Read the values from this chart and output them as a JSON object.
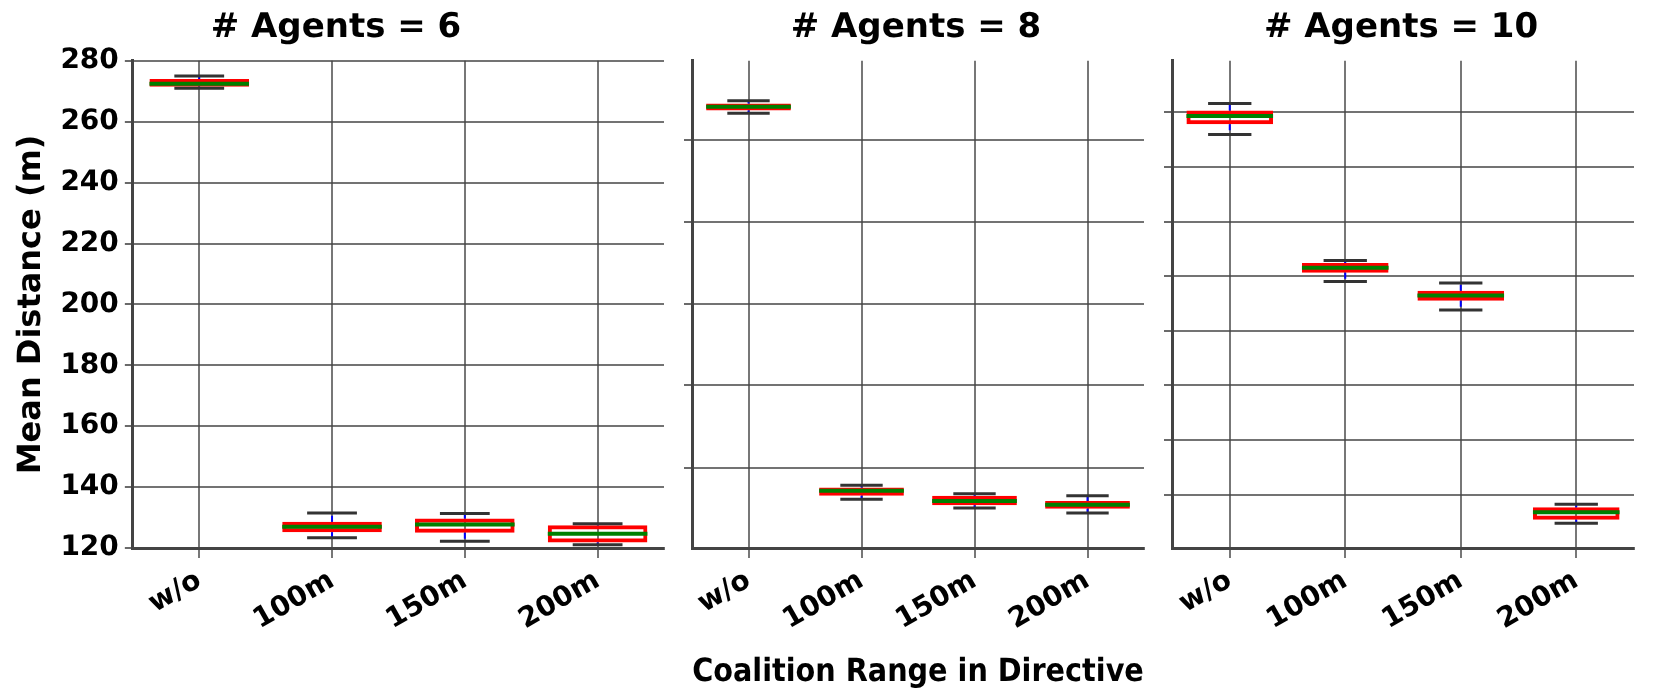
{
  "chart_data": [
    {
      "type": "box",
      "title": "# Agents = 6",
      "ylabel": "Mean Distance (m)",
      "categories": [
        "w/o",
        "100m",
        "150m",
        "200m"
      ],
      "ylim": [
        120,
        280
      ],
      "yticks": [
        120,
        140,
        160,
        180,
        200,
        220,
        240,
        260,
        280
      ],
      "grid": true,
      "series": [
        {
          "color": "#ff0000",
          "boxes": [
            {
              "low": 271,
              "q1": 271.5,
              "median": 272.5,
              "q3": 274,
              "high": 275
            },
            {
              "low": 123.4,
              "q1": 125.2,
              "median": 127,
              "q3": 128.6,
              "high": 131.5
            },
            {
              "low": 122.2,
              "q1": 125,
              "median": 127.7,
              "q3": 129.7,
              "high": 131.3
            },
            {
              "low": 121.1,
              "q1": 121.8,
              "median": 124.7,
              "q3": 127.5,
              "high": 128
            }
          ]
        }
      ]
    },
    {
      "type": "box",
      "title": "# Agents = 8",
      "xlabel": "Coalition Range in Directive",
      "categories": [
        "w/o",
        "100m",
        "150m",
        "200m"
      ],
      "ylim": [
        120,
        280
      ],
      "yticks": [
        {
          "value": 146.4,
          "label": null
        },
        {
          "value": 173.4,
          "label": null
        },
        {
          "value": 200.2,
          "label": null
        },
        {
          "value": 226.9,
          "label": null
        },
        {
          "value": 254,
          "label": null
        }
      ],
      "grid": true,
      "tick_labels": "x",
      "series": [
        {
          "color": "#ff0000",
          "boxes": [
            {
              "low": 262.8,
              "q1": 263.7,
              "median": 264.9,
              "q3": 266,
              "high": 266.9
            },
            {
              "low": 136,
              "q1": 137.2,
              "median": 138.8,
              "q3": 139.9,
              "high": 140.6
            },
            {
              "low": 133.1,
              "q1": 134,
              "median": 135.4,
              "q3": 137.2,
              "high": 137.8
            },
            {
              "low": 131.5,
              "q1": 132.9,
              "median": 134.2,
              "q3": 135.4,
              "high": 137.2
            }
          ]
        }
      ]
    },
    {
      "type": "box",
      "title": "# Agents = 10",
      "categories": [
        "w/o",
        "100m",
        "150m",
        "200m"
      ],
      "ylim": [
        120,
        280
      ],
      "yticks": [
        {
          "value": 137.4,
          "label": null
        },
        {
          "value": 155.5,
          "label": null
        },
        {
          "value": 173.4,
          "label": null
        },
        {
          "value": 191.2,
          "label": null
        },
        {
          "value": 209.3,
          "label": null
        },
        {
          "value": 226.9,
          "label": null
        },
        {
          "value": 245,
          "label": null
        },
        {
          "value": 263.1,
          "label": null
        }
      ],
      "grid": true,
      "tick_labels": "x",
      "series": [
        {
          "color": "#ff0000",
          "boxes": [
            {
              "low": 255.8,
              "q1": 259.2,
              "median": 261.9,
              "q3": 263.7,
              "high": 266
            },
            {
              "low": 207.5,
              "q1": 210.4,
              "median": 212,
              "q3": 213.6,
              "high": 214.4
            },
            {
              "low": 198.2,
              "q1": 201.2,
              "median": 202.9,
              "q3": 204.5,
              "high": 207
            },
            {
              "low": 128.1,
              "q1": 129.3,
              "median": 131.7,
              "q3": 133.4,
              "high": 134.4
            }
          ]
        }
      ]
    }
  ]
}
